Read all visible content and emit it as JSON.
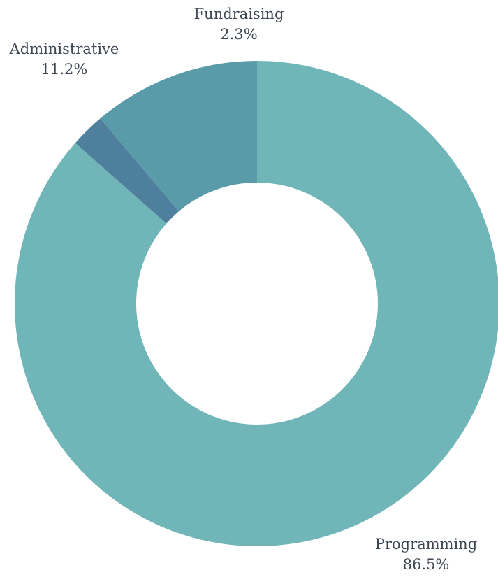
{
  "chart_data": {
    "type": "pie",
    "variant": "donut",
    "slices": [
      {
        "label": "Programming",
        "value": 86.5,
        "display": "86.5%",
        "color": "#70b6b8"
      },
      {
        "label": "Fundraising",
        "value": 2.3,
        "display": "2.3%",
        "color": "#4e7f9d"
      },
      {
        "label": "Administrative",
        "value": 11.2,
        "display": "11.2%",
        "color": "#5a9ba9"
      }
    ],
    "start_angle": "12 o'clock",
    "direction": "clockwise",
    "legend": "none",
    "labels": "outside, category name above percentage"
  }
}
